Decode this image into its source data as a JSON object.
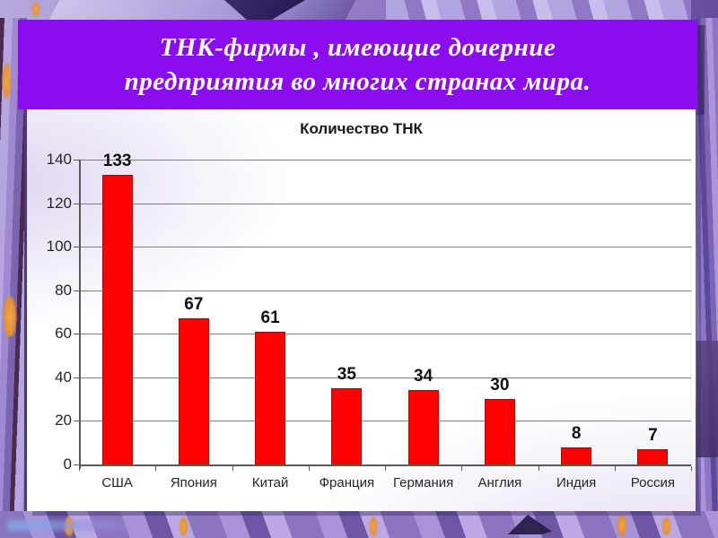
{
  "slide": {
    "title_lines": [
      "ТНК-фирмы , имеющие дочерние",
      "предприятия во многих странах мира."
    ]
  },
  "chart_data": {
    "type": "bar",
    "title": "Количество ТНК",
    "categories": [
      "США",
      "Япония",
      "Китай",
      "Франция",
      "Германия",
      "Англия",
      "Индия",
      "Россия"
    ],
    "values": [
      133,
      67,
      61,
      35,
      34,
      30,
      8,
      7
    ],
    "xlabel": "",
    "ylabel": "",
    "ylim": [
      0,
      140
    ],
    "yticks": [
      0,
      20,
      40,
      60,
      80,
      100,
      120,
      140
    ],
    "grid": true,
    "legend_position": "none",
    "data_labels": true
  },
  "colors": {
    "banner_bg": "#8a0cf0",
    "banner_text": "#ffffff",
    "bar_fill": "#fe0000",
    "bar_border": "#b00000",
    "gridline": "#7f7f7f",
    "axis": "#595959",
    "label_text": "#262626"
  }
}
